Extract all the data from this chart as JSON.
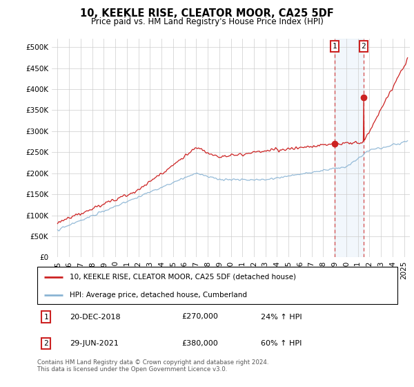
{
  "title": "10, KEEKLE RISE, CLEATOR MOOR, CA25 5DF",
  "subtitle": "Price paid vs. HM Land Registry's House Price Index (HPI)",
  "ytick_values": [
    0,
    50000,
    100000,
    150000,
    200000,
    250000,
    300000,
    350000,
    400000,
    450000,
    500000
  ],
  "ylim": [
    0,
    520000
  ],
  "xlim_start": 1994.5,
  "xlim_end": 2025.5,
  "hpi_color": "#8ab4d4",
  "price_color": "#cc2222",
  "background_color": "#ffffff",
  "grid_color": "#cccccc",
  "sale1_x": 2018.97,
  "sale1_y": 270000,
  "sale2_x": 2021.49,
  "sale2_y": 380000,
  "legend1_text": "10, KEEKLE RISE, CLEATOR MOOR, CA25 5DF (detached house)",
  "legend2_text": "HPI: Average price, detached house, Cumberland",
  "footnote": "Contains HM Land Registry data © Crown copyright and database right 2024.\nThis data is licensed under the Open Government Licence v3.0.",
  "xtick_years": [
    1995,
    1996,
    1997,
    1998,
    1999,
    2000,
    2001,
    2002,
    2003,
    2004,
    2005,
    2006,
    2007,
    2008,
    2009,
    2010,
    2011,
    2012,
    2013,
    2014,
    2015,
    2016,
    2017,
    2018,
    2019,
    2020,
    2021,
    2022,
    2023,
    2024,
    2025
  ]
}
